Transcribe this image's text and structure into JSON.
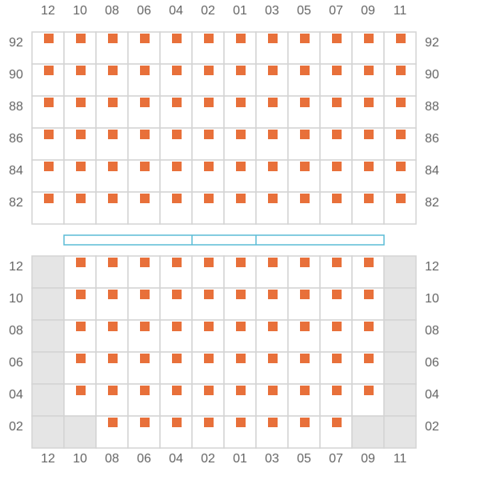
{
  "columns": [
    "12",
    "10",
    "08",
    "06",
    "04",
    "02",
    "01",
    "03",
    "05",
    "07",
    "09",
    "11"
  ],
  "upper_section": {
    "rows": [
      "92",
      "90",
      "88",
      "86",
      "84",
      "82"
    ]
  },
  "lower_section": {
    "rows": [
      "12",
      "10",
      "08",
      "06",
      "04",
      "02"
    ]
  }
}
